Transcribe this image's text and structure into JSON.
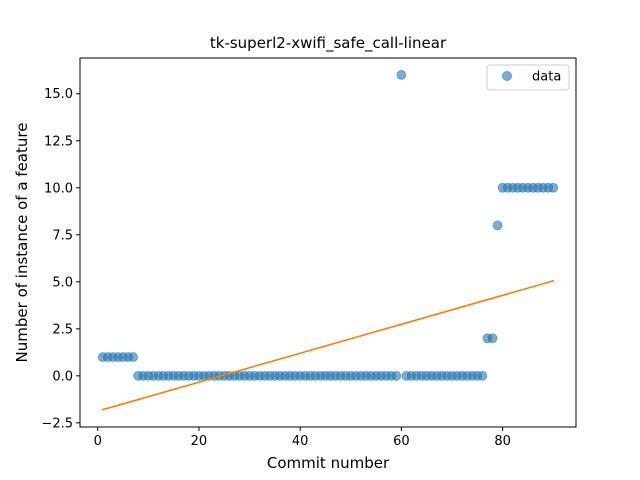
{
  "chart_data": {
    "type": "scatter",
    "title": "tk-superl2-xwifi_safe_call-linear",
    "xlabel": "Commit number",
    "ylabel": "Number of instance of a feature",
    "xlim": [
      -3.5,
      94.5
    ],
    "ylim": [
      -2.72,
      16.9
    ],
    "xticks": [
      0,
      20,
      40,
      60,
      80
    ],
    "xtick_labels": [
      "0",
      "20",
      "40",
      "60",
      "80"
    ],
    "yticks": [
      -2.5,
      0.0,
      2.5,
      5.0,
      7.5,
      10.0,
      12.5,
      15.0
    ],
    "ytick_labels": [
      "−2.5",
      "0.0",
      "2.5",
      "5.0",
      "7.5",
      "10.0",
      "12.5",
      "15.0"
    ],
    "grid": false,
    "legend": {
      "position": "top-right",
      "entries": [
        "data"
      ]
    },
    "series": [
      {
        "name": "data",
        "kind": "scatter",
        "color": "#1f77b4",
        "x": [
          1,
          2,
          3,
          4,
          5,
          6,
          7,
          8,
          9,
          10,
          11,
          12,
          13,
          14,
          15,
          16,
          17,
          18,
          19,
          20,
          21,
          22,
          23,
          24,
          25,
          26,
          27,
          28,
          29,
          30,
          31,
          32,
          33,
          34,
          35,
          36,
          37,
          38,
          39,
          40,
          41,
          42,
          43,
          44,
          45,
          46,
          47,
          48,
          49,
          50,
          51,
          52,
          53,
          54,
          55,
          56,
          57,
          58,
          59,
          60,
          61,
          62,
          63,
          64,
          65,
          66,
          67,
          68,
          69,
          70,
          71,
          72,
          73,
          74,
          75,
          76,
          77,
          78,
          79,
          80,
          81,
          82,
          83,
          84,
          85,
          86,
          87,
          88,
          89,
          90
        ],
        "y": [
          1,
          1,
          1,
          1,
          1,
          1,
          1,
          0,
          0,
          0,
          0,
          0,
          0,
          0,
          0,
          0,
          0,
          0,
          0,
          0,
          0,
          0,
          0,
          0,
          0,
          0,
          0,
          0,
          0,
          0,
          0,
          0,
          0,
          0,
          0,
          0,
          0,
          0,
          0,
          0,
          0,
          0,
          0,
          0,
          0,
          0,
          0,
          0,
          0,
          0,
          0,
          0,
          0,
          0,
          0,
          0,
          0,
          0,
          0,
          16,
          0,
          0,
          0,
          0,
          0,
          0,
          0,
          0,
          0,
          0,
          0,
          0,
          0,
          0,
          0,
          0,
          2,
          2,
          8,
          10,
          10,
          10,
          10,
          10,
          10,
          10,
          10,
          10,
          10,
          10
        ]
      },
      {
        "kind": "line",
        "color": "#ff7f0e",
        "x": [
          1,
          90
        ],
        "y": [
          -1.8,
          5.05
        ]
      }
    ]
  }
}
